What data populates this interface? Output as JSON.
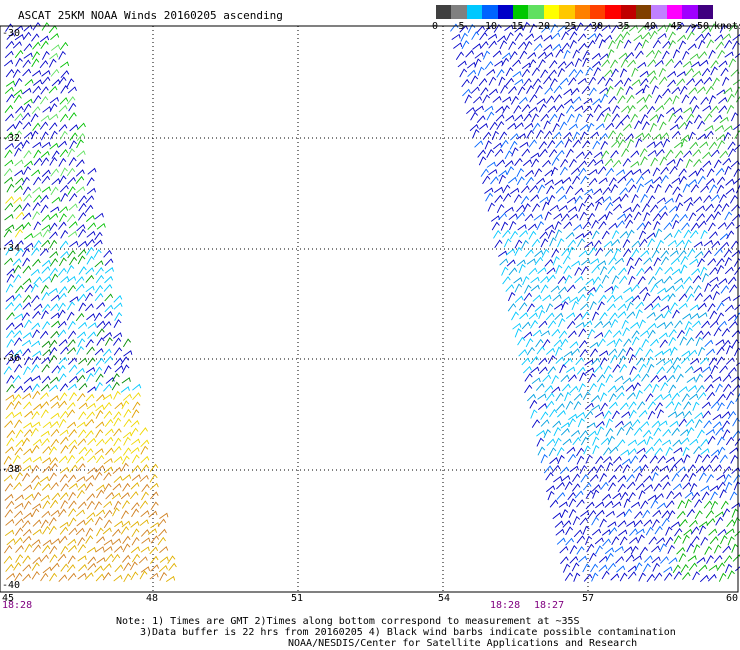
{
  "title": "ASCAT 25KM NOAA Winds 20160205 ascending",
  "legend": {
    "colors": [
      "#404040",
      "#808080",
      "#00c8ff",
      "#0064ff",
      "#0000c8",
      "#00c800",
      "#60e060",
      "#ffff00",
      "#ffc800",
      "#ff8000",
      "#ff4000",
      "#ff0000",
      "#c00000",
      "#804000",
      "#c080ff",
      "#ff00ff",
      "#a000ff",
      "#400080"
    ],
    "labels": [
      "0",
      "5",
      "10",
      "15",
      "20",
      "25",
      "30",
      "35",
      "40",
      "45",
      ">50"
    ],
    "unit": "knots"
  },
  "axes": {
    "lon_labels": [
      "45",
      "48",
      "51",
      "54",
      "57",
      "60"
    ],
    "lat_labels": [
      "-30",
      "-32",
      "-34",
      "-36",
      "-38",
      "-40"
    ]
  },
  "times": [
    "18:28",
    "18:28",
    "18:27"
  ],
  "notes": [
    "Note: 1) Times are GMT 2)Times along bottom correspond to measurement at ~35S",
    "3)Data buffer is 22 hrs from 20160205 4) Black wind barbs indicate possible contamination",
    "NOAA/NESDIS/Center for Satellite Applications and Research"
  ]
}
